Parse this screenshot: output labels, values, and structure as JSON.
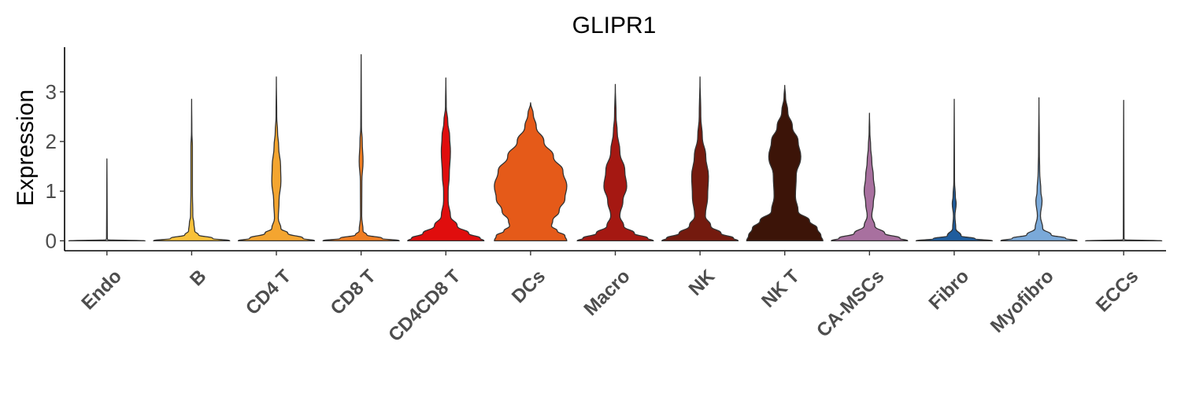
{
  "chart_data": {
    "type": "violin",
    "title": "GLIPR1",
    "xlabel": "",
    "ylabel": "Expression",
    "ylim": [
      -0.2,
      3.9
    ],
    "yticks": [
      0,
      1,
      2,
      3
    ],
    "grid": false,
    "legend": "none",
    "categories": [
      "Endo",
      "B",
      "CD4 T",
      "CD8 T",
      "CD4CD8 T",
      "DCs",
      "Macro",
      "NK",
      "NK T",
      "CA-MSCs",
      "Fibro",
      "Myofibro",
      "ECCs"
    ],
    "colors": [
      "#e8e8e8",
      "#f8c13a",
      "#f4a530",
      "#ef7d22",
      "#e00d0d",
      "#e55a19",
      "#a51812",
      "#741a0e",
      "#3c1408",
      "#a8709f",
      "#1f5d9e",
      "#7aa9d9",
      "#e8e8e8"
    ],
    "violins": [
      {
        "name": "Endo",
        "max": 1.65,
        "profile": [
          [
            0,
            1.0
          ],
          [
            0.02,
            0.02
          ],
          [
            0.05,
            0.01
          ],
          [
            1.65,
            0.0
          ]
        ]
      },
      {
        "name": "B",
        "max": 2.85,
        "profile": [
          [
            0,
            1.0
          ],
          [
            0.05,
            0.55
          ],
          [
            0.12,
            0.18
          ],
          [
            0.2,
            0.08
          ],
          [
            0.35,
            0.06
          ],
          [
            0.5,
            0.03
          ],
          [
            1.0,
            0.02
          ],
          [
            1.9,
            0.02
          ],
          [
            2.2,
            0.005
          ],
          [
            2.85,
            0.0
          ]
        ]
      },
      {
        "name": "CD4 T",
        "max": 3.3,
        "profile": [
          [
            0,
            1.0
          ],
          [
            0.05,
            0.7
          ],
          [
            0.15,
            0.3
          ],
          [
            0.25,
            0.12
          ],
          [
            0.45,
            0.05
          ],
          [
            0.8,
            0.07
          ],
          [
            1.2,
            0.12
          ],
          [
            1.5,
            0.11
          ],
          [
            1.9,
            0.06
          ],
          [
            2.2,
            0.03
          ],
          [
            2.5,
            0.01
          ],
          [
            3.3,
            0.0
          ]
        ]
      },
      {
        "name": "CD8 T",
        "max": 3.75,
        "profile": [
          [
            0,
            1.0
          ],
          [
            0.05,
            0.55
          ],
          [
            0.12,
            0.15
          ],
          [
            0.2,
            0.05
          ],
          [
            0.5,
            0.015
          ],
          [
            1.2,
            0.02
          ],
          [
            1.6,
            0.05
          ],
          [
            2.0,
            0.03
          ],
          [
            2.3,
            0.01
          ],
          [
            3.75,
            0.0
          ]
        ]
      },
      {
        "name": "CD4CD8 T",
        "max": 3.28,
        "profile": [
          [
            0,
            1.0
          ],
          [
            0.05,
            0.9
          ],
          [
            0.15,
            0.6
          ],
          [
            0.3,
            0.3
          ],
          [
            0.5,
            0.12
          ],
          [
            0.8,
            0.06
          ],
          [
            1.0,
            0.06
          ],
          [
            1.3,
            0.09
          ],
          [
            1.8,
            0.12
          ],
          [
            2.1,
            0.1
          ],
          [
            2.4,
            0.05
          ],
          [
            2.7,
            0.01
          ],
          [
            3.28,
            0.0
          ]
        ]
      },
      {
        "name": "DCs",
        "max": 2.78,
        "profile": [
          [
            0,
            0.95
          ],
          [
            0.1,
            0.9
          ],
          [
            0.2,
            0.7
          ],
          [
            0.3,
            0.55
          ],
          [
            0.4,
            0.58
          ],
          [
            0.6,
            0.75
          ],
          [
            0.85,
            0.9
          ],
          [
            1.1,
            0.95
          ],
          [
            1.4,
            0.85
          ],
          [
            1.7,
            0.6
          ],
          [
            2.0,
            0.35
          ],
          [
            2.3,
            0.15
          ],
          [
            2.55,
            0.07
          ],
          [
            2.78,
            0.0
          ]
        ]
      },
      {
        "name": "Macro",
        "max": 3.15,
        "profile": [
          [
            0,
            1.0
          ],
          [
            0.05,
            0.85
          ],
          [
            0.15,
            0.5
          ],
          [
            0.3,
            0.22
          ],
          [
            0.5,
            0.12
          ],
          [
            0.8,
            0.2
          ],
          [
            1.1,
            0.3
          ],
          [
            1.4,
            0.25
          ],
          [
            1.8,
            0.12
          ],
          [
            2.2,
            0.05
          ],
          [
            2.5,
            0.02
          ],
          [
            3.15,
            0.0
          ]
        ]
      },
      {
        "name": "NK",
        "max": 3.3,
        "profile": [
          [
            0,
            1.0
          ],
          [
            0.05,
            0.88
          ],
          [
            0.15,
            0.55
          ],
          [
            0.3,
            0.28
          ],
          [
            0.5,
            0.14
          ],
          [
            0.9,
            0.2
          ],
          [
            1.3,
            0.22
          ],
          [
            1.7,
            0.15
          ],
          [
            2.1,
            0.06
          ],
          [
            2.5,
            0.02
          ],
          [
            3.3,
            0.0
          ]
        ]
      },
      {
        "name": "NK T",
        "max": 3.13,
        "profile": [
          [
            0,
            1.0
          ],
          [
            0.1,
            0.95
          ],
          [
            0.25,
            0.85
          ],
          [
            0.4,
            0.65
          ],
          [
            0.6,
            0.35
          ],
          [
            0.9,
            0.28
          ],
          [
            1.3,
            0.3
          ],
          [
            1.7,
            0.42
          ],
          [
            2.0,
            0.35
          ],
          [
            2.3,
            0.2
          ],
          [
            2.6,
            0.08
          ],
          [
            2.9,
            0.02
          ],
          [
            3.13,
            0.0
          ]
        ]
      },
      {
        "name": "CA-MSCs",
        "max": 2.57,
        "profile": [
          [
            0,
            1.0
          ],
          [
            0.05,
            0.8
          ],
          [
            0.15,
            0.4
          ],
          [
            0.3,
            0.14
          ],
          [
            0.5,
            0.06
          ],
          [
            0.75,
            0.1
          ],
          [
            1.0,
            0.14
          ],
          [
            1.3,
            0.1
          ],
          [
            1.6,
            0.06
          ],
          [
            1.9,
            0.03
          ],
          [
            2.2,
            0.01
          ],
          [
            2.57,
            0.0
          ]
        ]
      },
      {
        "name": "Fibro",
        "max": 2.85,
        "profile": [
          [
            0,
            1.0
          ],
          [
            0.04,
            0.55
          ],
          [
            0.1,
            0.18
          ],
          [
            0.25,
            0.04
          ],
          [
            0.5,
            0.02
          ],
          [
            0.75,
            0.05
          ],
          [
            0.9,
            0.03
          ],
          [
            1.2,
            0.01
          ],
          [
            2.85,
            0.0
          ]
        ]
      },
      {
        "name": "Myofibro",
        "max": 2.88,
        "profile": [
          [
            0,
            1.0
          ],
          [
            0.05,
            0.7
          ],
          [
            0.12,
            0.32
          ],
          [
            0.25,
            0.1
          ],
          [
            0.5,
            0.04
          ],
          [
            0.8,
            0.08
          ],
          [
            1.0,
            0.05
          ],
          [
            1.4,
            0.02
          ],
          [
            1.8,
            0.01
          ],
          [
            2.88,
            0.0
          ]
        ]
      },
      {
        "name": "ECCs",
        "max": 2.83,
        "profile": [
          [
            0,
            1.0
          ],
          [
            0.02,
            0.02
          ],
          [
            0.05,
            0.01
          ],
          [
            2.83,
            0.0
          ]
        ]
      }
    ]
  }
}
